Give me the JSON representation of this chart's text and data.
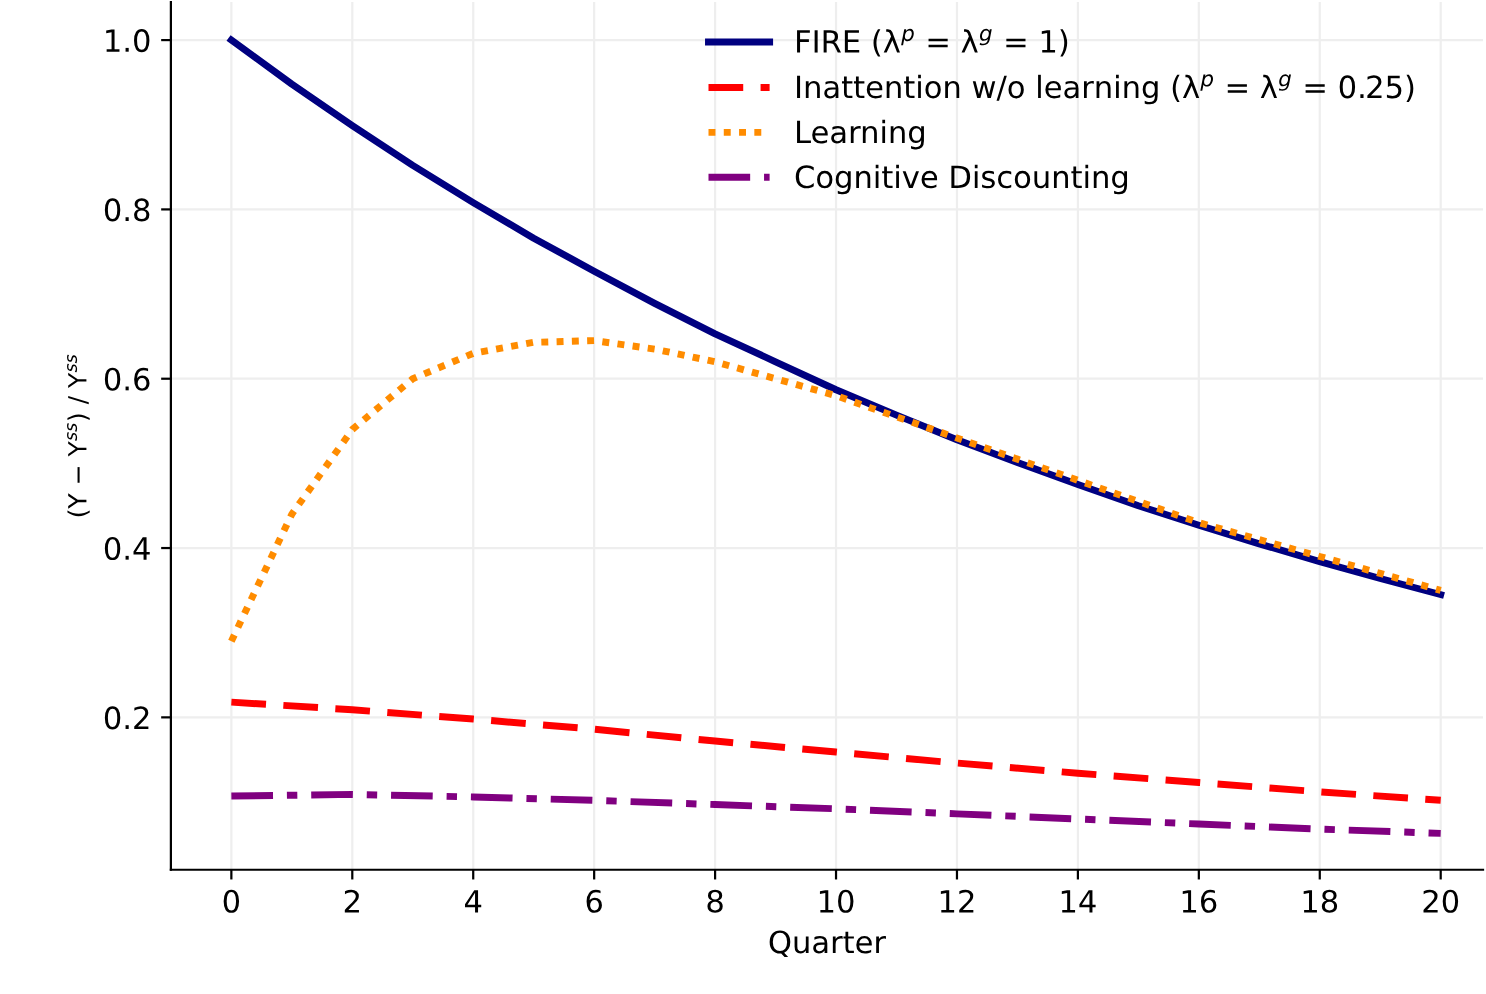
{
  "chart_data": {
    "type": "line",
    "xlabel": "Quarter",
    "ylabel": "(Y − Y$^{ss}$) / Y$^{ss}$",
    "xlim": [
      -1,
      20.7
    ],
    "ylim": [
      0.02,
      1.045
    ],
    "xticks": [
      0,
      2,
      4,
      6,
      8,
      10,
      12,
      14,
      16,
      18,
      20
    ],
    "yticks": [
      0.2,
      0.4,
      0.6,
      0.8,
      {
        "value": 1,
        "label": "1.0"
      }
    ],
    "grid": true,
    "legend": "top right",
    "series": [
      {
        "name": "FIRE (λ$^{p}$ = λ$^{g}$ = 1)",
        "color": "#000080",
        "line_style": "solid",
        "x": [
          0,
          1,
          2,
          3,
          4,
          5,
          6,
          7,
          8,
          9,
          10,
          11,
          12,
          13,
          14,
          15,
          16,
          17,
          18,
          19,
          20
        ],
        "values": [
          1.0,
          0.948,
          0.899,
          0.852,
          0.808,
          0.766,
          0.727,
          0.689,
          0.653,
          0.62,
          0.587,
          0.557,
          0.528,
          0.501,
          0.475,
          0.45,
          0.427,
          0.405,
          0.384,
          0.364,
          0.345
        ]
      },
      {
        "name": "Inattention w/o learning (λ$^{p}$ = λ$^{g}$ = 0.25)",
        "color": "#ff0000",
        "line_style": "dashed",
        "x": [
          0,
          2,
          4,
          6,
          8,
          10,
          12,
          14,
          16,
          18,
          20
        ],
        "values": [
          0.218,
          0.209,
          0.198,
          0.186,
          0.172,
          0.159,
          0.146,
          0.134,
          0.123,
          0.112,
          0.102
        ]
      },
      {
        "name": "Learning",
        "color": "#ff8c00",
        "line_style": "dotted",
        "x": [
          0,
          1,
          2,
          3,
          4,
          5,
          6,
          7,
          8,
          9,
          10,
          11,
          12,
          13,
          14,
          15,
          16,
          17,
          18,
          19,
          20
        ],
        "values": [
          0.29,
          0.44,
          0.54,
          0.6,
          0.63,
          0.643,
          0.645,
          0.635,
          0.62,
          0.6,
          0.58,
          0.555,
          0.53,
          0.505,
          0.48,
          0.455,
          0.43,
          0.41,
          0.39,
          0.37,
          0.35
        ]
      },
      {
        "name": "Cognitive Discounting",
        "color": "#800080",
        "line_style": "dashdot",
        "x": [
          0,
          2,
          4,
          6,
          8,
          10,
          12,
          14,
          16,
          18,
          20
        ],
        "values": [
          0.107,
          0.109,
          0.106,
          0.102,
          0.097,
          0.092,
          0.086,
          0.08,
          0.074,
          0.068,
          0.063
        ]
      }
    ]
  }
}
